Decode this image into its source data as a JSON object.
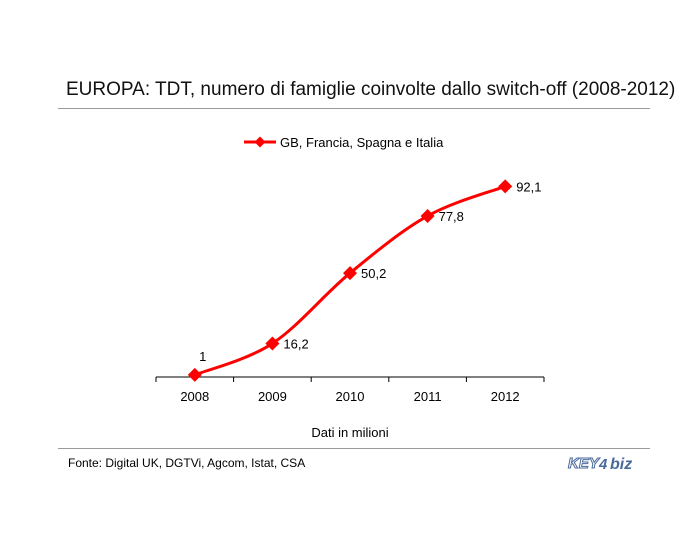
{
  "header": {
    "title": "EUROPA: TDT, numero di famiglie coinvolte dallo switch-off (2008-2012)"
  },
  "chart_data": {
    "type": "line",
    "title": "EUROPA: TDT, numero di famiglie coinvolte dallo switch-off (2008-2012)",
    "xlabel": "Dati in milioni",
    "ylabel": "",
    "categories": [
      "2008",
      "2009",
      "2010",
      "2011",
      "2012"
    ],
    "series": [
      {
        "name": "GB, Francia, Spagna e Italia",
        "values": [
          1,
          16.2,
          50.2,
          77.8,
          92.1
        ],
        "labels": [
          "1",
          "16,2",
          "50,2",
          "77,8",
          "92,1"
        ],
        "color": "#ff0000"
      }
    ],
    "ylim": [
      0,
      100
    ],
    "legend": "top-center",
    "grid": false,
    "y_axis_visible": false,
    "smooth": true
  },
  "footer": {
    "source": "Fonte: Digital UK, DGTVi, Agcom, Istat, CSA",
    "logo_text": "KEY4biz",
    "logo_color": "#4a6a9c"
  }
}
